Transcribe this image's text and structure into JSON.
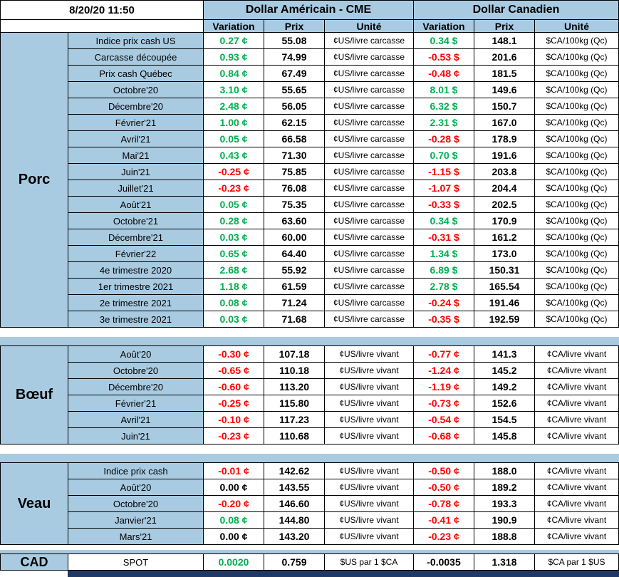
{
  "colors": {
    "blue": "#A9CBE2",
    "navy": "#1F3864",
    "positive": "#00B050",
    "negative": "#FF0000"
  },
  "header": {
    "datetime": "8/20/20 11:50",
    "usd_title": "Dollar Américain - CME",
    "cad_title": "Dollar Canadien",
    "variation": "Variation",
    "prix": "Prix",
    "unite": "Unité"
  },
  "sections": [
    {
      "id": "porc",
      "name": "Porc",
      "rows": [
        {
          "label": "Indice prix cash US",
          "us_var": "0.27 ¢",
          "us_var_c": "g",
          "us_prix": "55.08",
          "us_unit": "¢US/livre carcasse",
          "ca_var": "0.34 $",
          "ca_var_c": "g",
          "ca_prix": "148.1",
          "ca_unit": "$CA/100kg (Qc)"
        },
        {
          "label": "Carcasse découpée",
          "us_var": "0.93 ¢",
          "us_var_c": "g",
          "us_prix": "74.99",
          "us_unit": "¢US/livre carcasse",
          "ca_var": "-0.53 $",
          "ca_var_c": "r",
          "ca_prix": "201.6",
          "ca_unit": "$CA/100kg (Qc)"
        },
        {
          "label": "Prix cash Québec",
          "us_var": "0.84 ¢",
          "us_var_c": "g",
          "us_prix": "67.49",
          "us_unit": "¢US/livre carcasse",
          "ca_var": "-0.48 ¢",
          "ca_var_c": "r",
          "ca_prix": "181.5",
          "ca_unit": "$CA/100kg (Qc)"
        },
        {
          "label": "Octobre'20",
          "us_var": "3.10 ¢",
          "us_var_c": "g",
          "us_prix": "55.65",
          "us_unit": "¢US/livre carcasse",
          "ca_var": "8.01 $",
          "ca_var_c": "g",
          "ca_prix": "149.6",
          "ca_unit": "$CA/100kg (Qc)"
        },
        {
          "label": "Décembre'20",
          "us_var": "2.48 ¢",
          "us_var_c": "g",
          "us_prix": "56.05",
          "us_unit": "¢US/livre carcasse",
          "ca_var": "6.32 $",
          "ca_var_c": "g",
          "ca_prix": "150.7",
          "ca_unit": "$CA/100kg (Qc)"
        },
        {
          "label": "Février'21",
          "us_var": "1.00 ¢",
          "us_var_c": "g",
          "us_prix": "62.15",
          "us_unit": "¢US/livre carcasse",
          "ca_var": "2.31 $",
          "ca_var_c": "g",
          "ca_prix": "167.0",
          "ca_unit": "$CA/100kg (Qc)"
        },
        {
          "label": "Avril'21",
          "us_var": "0.05 ¢",
          "us_var_c": "g",
          "us_prix": "66.58",
          "us_unit": "¢US/livre carcasse",
          "ca_var": "-0.28 $",
          "ca_var_c": "r",
          "ca_prix": "178.9",
          "ca_unit": "$CA/100kg (Qc)"
        },
        {
          "label": "Mai'21",
          "us_var": "0.43 ¢",
          "us_var_c": "g",
          "us_prix": "71.30",
          "us_unit": "¢US/livre carcasse",
          "ca_var": "0.70 $",
          "ca_var_c": "g",
          "ca_prix": "191.6",
          "ca_unit": "$CA/100kg (Qc)"
        },
        {
          "label": "Juin'21",
          "us_var": "-0.25 ¢",
          "us_var_c": "r",
          "us_prix": "75.85",
          "us_unit": "¢US/livre carcasse",
          "ca_var": "-1.15 $",
          "ca_var_c": "r",
          "ca_prix": "203.8",
          "ca_unit": "$CA/100kg (Qc)"
        },
        {
          "label": "Juillet'21",
          "us_var": "-0.23 ¢",
          "us_var_c": "r",
          "us_prix": "76.08",
          "us_unit": "¢US/livre carcasse",
          "ca_var": "-1.07 $",
          "ca_var_c": "r",
          "ca_prix": "204.4",
          "ca_unit": "$CA/100kg (Qc)"
        },
        {
          "label": "Août'21",
          "us_var": "0.05 ¢",
          "us_var_c": "g",
          "us_prix": "75.35",
          "us_unit": "¢US/livre carcasse",
          "ca_var": "-0.33 $",
          "ca_var_c": "r",
          "ca_prix": "202.5",
          "ca_unit": "$CA/100kg (Qc)"
        },
        {
          "label": "Octobre'21",
          "us_var": "0.28 ¢",
          "us_var_c": "g",
          "us_prix": "63.60",
          "us_unit": "¢US/livre carcasse",
          "ca_var": "0.34 $",
          "ca_var_c": "g",
          "ca_prix": "170.9",
          "ca_unit": "$CA/100kg (Qc)"
        },
        {
          "label": "Décembre'21",
          "us_var": "0.03 ¢",
          "us_var_c": "g",
          "us_prix": "60.00",
          "us_unit": "¢US/livre carcasse",
          "ca_var": "-0.31 $",
          "ca_var_c": "r",
          "ca_prix": "161.2",
          "ca_unit": "$CA/100kg (Qc)"
        },
        {
          "label": "Février'22",
          "us_var": "0.65 ¢",
          "us_var_c": "g",
          "us_prix": "64.40",
          "us_unit": "¢US/livre carcasse",
          "ca_var": "1.34 $",
          "ca_var_c": "g",
          "ca_prix": "173.0",
          "ca_unit": "$CA/100kg (Qc)"
        },
        {
          "label": "4e trimestre 2020",
          "us_var": "2.68 ¢",
          "us_var_c": "g",
          "us_prix": "55.92",
          "us_unit": "¢US/livre carcasse",
          "ca_var": "6.89 $",
          "ca_var_c": "g",
          "ca_prix": "150.31",
          "ca_unit": "$CA/100kg (Qc)"
        },
        {
          "label": "1er trimestre 2021",
          "us_var": "1.18 ¢",
          "us_var_c": "g",
          "us_prix": "61.59",
          "us_unit": "¢US/livre carcasse",
          "ca_var": "2.78 $",
          "ca_var_c": "g",
          "ca_prix": "165.54",
          "ca_unit": "$CA/100kg (Qc)"
        },
        {
          "label": "2e trimestre 2021",
          "us_var": "0.08 ¢",
          "us_var_c": "g",
          "us_prix": "71.24",
          "us_unit": "¢US/livre carcasse",
          "ca_var": "-0.24 $",
          "ca_var_c": "r",
          "ca_prix": "191.46",
          "ca_unit": "$CA/100kg (Qc)"
        },
        {
          "label": "3e trimestre 2021",
          "us_var": "0.03 ¢",
          "us_var_c": "g",
          "us_prix": "71.68",
          "us_unit": "¢US/livre carcasse",
          "ca_var": "-0.35 $",
          "ca_var_c": "r",
          "ca_prix": "192.59",
          "ca_unit": "$CA/100kg (Qc)"
        }
      ]
    },
    {
      "id": "boeuf",
      "name": "Bœuf",
      "rows": [
        {
          "label": "Août'20",
          "us_var": "-0.30 ¢",
          "us_var_c": "r",
          "us_prix": "107.18",
          "us_unit": "¢US/livre vivant",
          "ca_var": "-0.77 ¢",
          "ca_var_c": "r",
          "ca_prix": "141.3",
          "ca_unit": "¢CA/livre vivant"
        },
        {
          "label": "Octobre'20",
          "us_var": "-0.65 ¢",
          "us_var_c": "r",
          "us_prix": "110.18",
          "us_unit": "¢US/livre vivant",
          "ca_var": "-1.24 ¢",
          "ca_var_c": "r",
          "ca_prix": "145.2",
          "ca_unit": "¢CA/livre vivant"
        },
        {
          "label": "Décembre'20",
          "us_var": "-0.60 ¢",
          "us_var_c": "r",
          "us_prix": "113.20",
          "us_unit": "¢US/livre vivant",
          "ca_var": "-1.19 ¢",
          "ca_var_c": "r",
          "ca_prix": "149.2",
          "ca_unit": "¢CA/livre vivant"
        },
        {
          "label": "Février'21",
          "us_var": "-0.25 ¢",
          "us_var_c": "r",
          "us_prix": "115.80",
          "us_unit": "¢US/livre vivant",
          "ca_var": "-0.73 ¢",
          "ca_var_c": "r",
          "ca_prix": "152.6",
          "ca_unit": "¢CA/livre vivant"
        },
        {
          "label": "Avril'21",
          "us_var": "-0.10 ¢",
          "us_var_c": "r",
          "us_prix": "117.23",
          "us_unit": "¢US/livre vivant",
          "ca_var": "-0.54 ¢",
          "ca_var_c": "r",
          "ca_prix": "154.5",
          "ca_unit": "¢CA/livre vivant"
        },
        {
          "label": "Juin'21",
          "us_var": "-0.23 ¢",
          "us_var_c": "r",
          "us_prix": "110.68",
          "us_unit": "¢US/livre vivant",
          "ca_var": "-0.68 ¢",
          "ca_var_c": "r",
          "ca_prix": "145.8",
          "ca_unit": "¢CA/livre vivant"
        }
      ]
    },
    {
      "id": "veau",
      "name": "Veau",
      "rows": [
        {
          "label": "Indice prix cash",
          "us_var": "-0.01 ¢",
          "us_var_c": "r",
          "us_prix": "142.62",
          "us_unit": "¢US/livre vivant",
          "ca_var": "-0.50 ¢",
          "ca_var_c": "r",
          "ca_prix": "188.0",
          "ca_unit": "¢CA/livre vivant"
        },
        {
          "label": "Août'20",
          "us_var": "0.00 ¢",
          "us_var_c": "k",
          "us_prix": "143.55",
          "us_unit": "¢US/livre vivant",
          "ca_var": "-0.50 ¢",
          "ca_var_c": "r",
          "ca_prix": "189.2",
          "ca_unit": "¢CA/livre vivant"
        },
        {
          "label": "Octobre'20",
          "us_var": "-0.20 ¢",
          "us_var_c": "r",
          "us_prix": "146.60",
          "us_unit": "¢US/livre vivant",
          "ca_var": "-0.78 ¢",
          "ca_var_c": "r",
          "ca_prix": "193.3",
          "ca_unit": "¢CA/livre vivant"
        },
        {
          "label": "Janvier'21",
          "us_var": "0.08 ¢",
          "us_var_c": "g",
          "us_prix": "144.80",
          "us_unit": "¢US/livre vivant",
          "ca_var": "-0.41 ¢",
          "ca_var_c": "r",
          "ca_prix": "190.9",
          "ca_unit": "¢CA/livre vivant"
        },
        {
          "label": "Mars'21",
          "us_var": "0.00 ¢",
          "us_var_c": "k",
          "us_prix": "143.20",
          "us_unit": "¢US/livre vivant",
          "ca_var": "-0.23 ¢",
          "ca_var_c": "r",
          "ca_prix": "188.8",
          "ca_unit": "¢CA/livre vivant"
        }
      ]
    },
    {
      "id": "cad",
      "name": "CAD",
      "rows": [
        {
          "label": "SPOT",
          "us_var": "0.0020",
          "us_var_c": "g",
          "us_prix": "0.759",
          "us_unit": "$US par 1 $CA",
          "ca_var": "-0.0035",
          "ca_var_c": "k",
          "ca_prix": "1.318",
          "ca_unit": "$CA par 1 $US"
        }
      ]
    }
  ]
}
